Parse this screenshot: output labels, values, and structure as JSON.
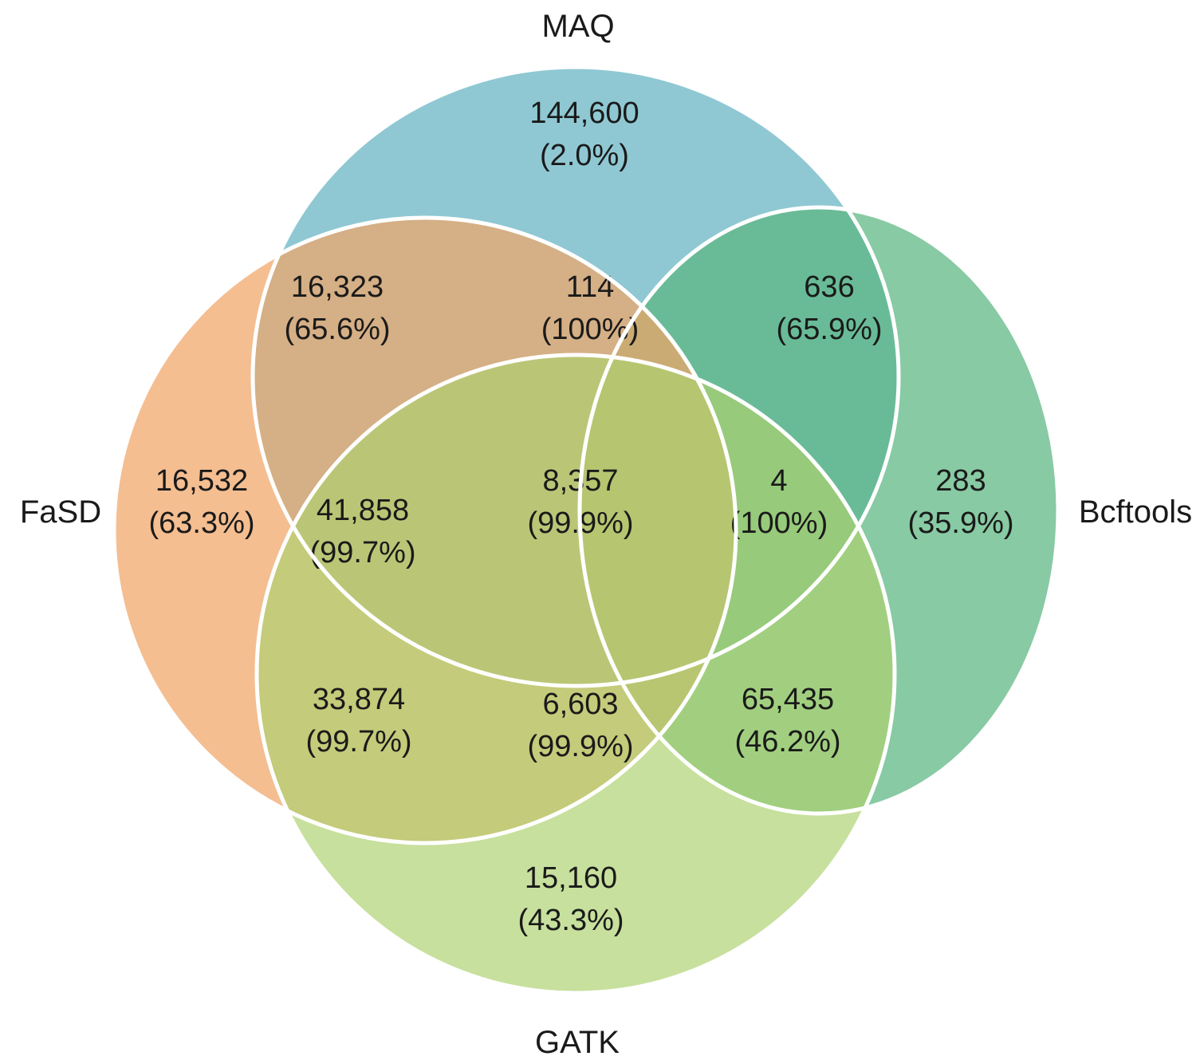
{
  "sets": [
    {
      "id": "maq",
      "name": "MAQ",
      "color": "#6fb9c7"
    },
    {
      "id": "bcftools",
      "name": "Bcftools",
      "color": "#5ab67f"
    },
    {
      "id": "fasd",
      "name": "FaSD",
      "color": "#f0a566"
    },
    {
      "id": "gatk",
      "name": "GATK",
      "color": "#acd26f"
    }
  ],
  "regions": [
    {
      "id": "maq-only",
      "count": "144,600",
      "pct": "(2.0%)"
    },
    {
      "id": "fasd-maq",
      "count": "16,323",
      "pct": "(65.6%)"
    },
    {
      "id": "fasd-maq-bcftools",
      "count": "114",
      "pct": "(100%)"
    },
    {
      "id": "maq-bcftools",
      "count": "636",
      "pct": "(65.9%)"
    },
    {
      "id": "fasd-only",
      "count": "16,532",
      "pct": "(63.3%)"
    },
    {
      "id": "fasd-maq-gatk",
      "count": "41,858",
      "pct": "(99.7%)"
    },
    {
      "id": "all-four",
      "count": "8,357",
      "pct": "(99.9%)"
    },
    {
      "id": "maq-bcftools-gatk",
      "count": "4",
      "pct": "(100%)"
    },
    {
      "id": "bcftools-only",
      "count": "283",
      "pct": "(35.9%)"
    },
    {
      "id": "fasd-gatk",
      "count": "33,874",
      "pct": "(99.7%)"
    },
    {
      "id": "fasd-bcftools-gatk",
      "count": "6,603",
      "pct": "(99.9%)"
    },
    {
      "id": "bcftools-gatk",
      "count": "65,435",
      "pct": "(46.2%)"
    },
    {
      "id": "gatk-only",
      "count": "15,160",
      "pct": "(43.3%)"
    }
  ]
}
